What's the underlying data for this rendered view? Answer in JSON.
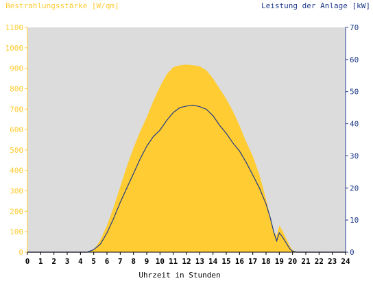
{
  "chart_data": {
    "type": "area",
    "title_left": "Bestrahlungsstärke [W/qm]",
    "title_right": "Leistung der Anlage [kW]",
    "xlabel": "Uhrzeit in Stunden",
    "xlim": [
      0,
      24
    ],
    "ylim_left": [
      0,
      1100
    ],
    "ylim_right": [
      0,
      70
    ],
    "x_ticks": [
      0,
      1,
      2,
      3,
      4,
      5,
      6,
      7,
      8,
      9,
      10,
      11,
      12,
      13,
      14,
      15,
      16,
      17,
      18,
      19,
      20,
      21,
      22,
      23,
      24
    ],
    "y_ticks_left": [
      0,
      100,
      200,
      300,
      400,
      500,
      600,
      700,
      800,
      900,
      1000,
      1100
    ],
    "y_ticks_right": [
      0,
      10,
      20,
      30,
      40,
      50,
      60,
      70
    ],
    "grid": false,
    "colors": {
      "background": "#dcdcdc",
      "irradiance_fill": "#ffcc33",
      "power_line": "#1f3a8a",
      "left_axis": "#ffcc33",
      "right_axis": "#1f3a8a"
    },
    "series": [
      {
        "axis": "left",
        "kind": "area",
        "x": [
          0,
          4.5,
          4.8,
          5.0,
          5.2,
          5.5,
          6.0,
          6.5,
          7.0,
          7.5,
          8.0,
          8.5,
          9.0,
          9.5,
          10.0,
          10.5,
          11.0,
          11.5,
          12.0,
          12.5,
          13.0,
          13.5,
          14.0,
          14.5,
          15.0,
          15.5,
          16.0,
          16.5,
          17.0,
          17.5,
          18.0,
          18.3,
          18.6,
          18.8,
          19.0,
          19.2,
          19.5,
          19.8,
          20.0,
          20.3,
          20.6,
          21.0,
          24.0
        ],
        "values": [
          0,
          0,
          5,
          15,
          30,
          60,
          130,
          220,
          320,
          420,
          510,
          590,
          660,
          740,
          810,
          870,
          905,
          915,
          918,
          915,
          910,
          890,
          850,
          800,
          750,
          690,
          620,
          540,
          470,
          380,
          260,
          180,
          100,
          80,
          130,
          110,
          70,
          30,
          10,
          2,
          0,
          0,
          0
        ]
      },
      {
        "axis": "right",
        "kind": "line",
        "x": [
          0,
          4.5,
          5.0,
          5.5,
          6.0,
          6.5,
          7.0,
          7.5,
          8.0,
          8.5,
          9.0,
          9.5,
          10.0,
          10.5,
          11.0,
          11.5,
          12.0,
          12.5,
          13.0,
          13.5,
          14.0,
          14.5,
          15.0,
          15.5,
          16.0,
          16.5,
          17.0,
          17.5,
          18.0,
          18.3,
          18.6,
          18.8,
          19.0,
          19.2,
          19.5,
          19.8,
          20.0,
          20.3,
          21.0,
          24.0
        ],
        "values": [
          0,
          0,
          0.8,
          2.5,
          6,
          10.5,
          15.5,
          20,
          24.5,
          29,
          33,
          36,
          38,
          41,
          43.5,
          45,
          45.5,
          45.8,
          45.3,
          44.5,
          42.5,
          39.5,
          37,
          34,
          31.5,
          28,
          24,
          20,
          15,
          11,
          6,
          3.5,
          6,
          5,
          3,
          1,
          0.3,
          0,
          0,
          0
        ]
      }
    ]
  }
}
